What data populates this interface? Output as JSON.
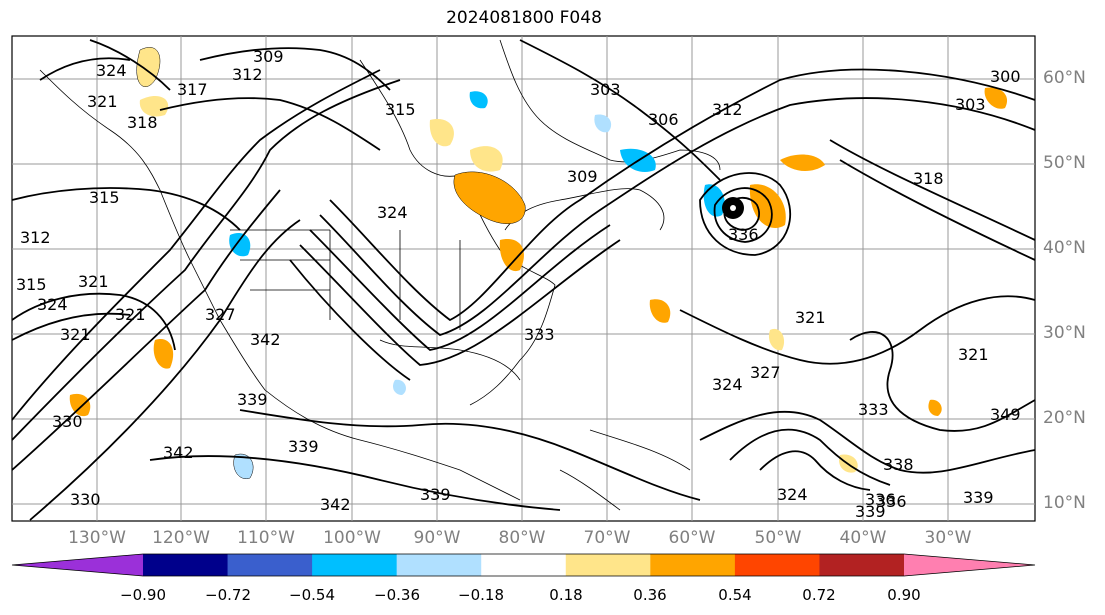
{
  "title": "2024081800 F048",
  "lat_labels": [
    "60°N",
    "50°N",
    "40°N",
    "30°N",
    "20°N",
    "10°N"
  ],
  "lon_labels": [
    "130°W",
    "120°W",
    "110°W",
    "100°W",
    "90°W",
    "80°W",
    "70°W",
    "60°W",
    "50°W",
    "40°W",
    "30°W"
  ],
  "colorbar": {
    "ticks": [
      "−0.90",
      "−0.72",
      "−0.54",
      "−0.36",
      "−0.18",
      "0.18",
      "0.36",
      "0.54",
      "0.72",
      "0.90"
    ],
    "colors": [
      "#9b30d9",
      "#00008b",
      "#3a5fcd",
      "#00bfff",
      "#b0e0ff",
      "#ffffff",
      "#ffe58a",
      "#ffa500",
      "#ff4500",
      "#b22222",
      "#ff7fb0"
    ]
  },
  "contour_labels": [
    "324",
    "309",
    "312",
    "317",
    "315",
    "303",
    "306",
    "312",
    "300",
    "303",
    "321",
    "318",
    "315",
    "324",
    "309",
    "318",
    "312",
    "315",
    "321",
    "321",
    "324",
    "321",
    "327",
    "336",
    "321",
    "333",
    "342",
    "339",
    "330",
    "324",
    "327",
    "333",
    "338",
    "342",
    "339",
    "339",
    "336",
    "324",
    "336",
    "339",
    "339",
    "342",
    "321",
    "349",
    "330"
  ],
  "hurricane_icon": "hurricane-eye-icon"
}
